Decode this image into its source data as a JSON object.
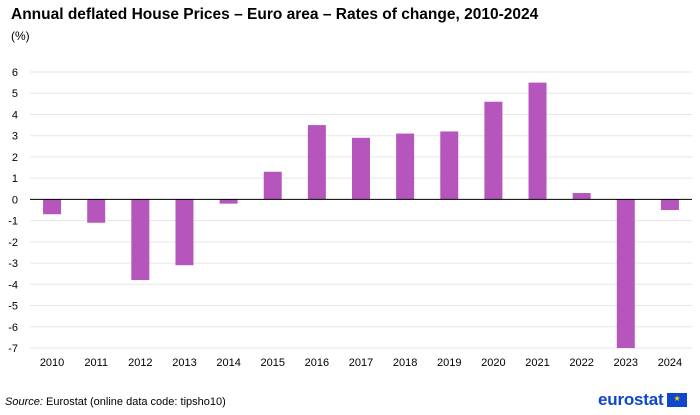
{
  "header": {
    "title": "Annual deflated House Prices – Euro area – Rates of change, 2010-2024",
    "unit": "(%)"
  },
  "footer": {
    "source_label": "Source:",
    "source_text": "Eurostat (online data code: tipsho10)",
    "logo_text": "eurostat"
  },
  "colors": {
    "bar": "#b656bd",
    "grid": "#e6e6e6",
    "axis": "#000000",
    "brand": "#0e47cb"
  },
  "chart_data": {
    "type": "bar",
    "title": "Annual deflated House Prices – Euro area – Rates of change, 2010-2024",
    "ylabel": "(%)",
    "xlabel": "",
    "categories": [
      "2010",
      "2011",
      "2012",
      "2013",
      "2014",
      "2015",
      "2016",
      "2017",
      "2018",
      "2019",
      "2020",
      "2021",
      "2022",
      "2023",
      "2024"
    ],
    "values": [
      -0.7,
      -1.1,
      -3.8,
      -3.1,
      -0.2,
      1.3,
      3.5,
      2.9,
      3.1,
      3.2,
      4.6,
      5.5,
      0.3,
      -7.0,
      -0.5
    ],
    "ylim": [
      -7,
      6
    ],
    "yticks": [
      6,
      5,
      4,
      3,
      2,
      1,
      0,
      -1,
      -2,
      -3,
      -4,
      -5,
      -6,
      -7
    ],
    "grid": true,
    "legend": "none"
  }
}
